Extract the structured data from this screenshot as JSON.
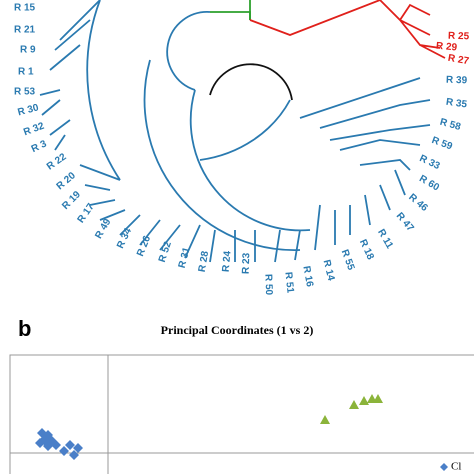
{
  "dendrogram": {
    "leaves_blue": [
      "R 15",
      "R 21",
      "R 9",
      "R 1",
      "R 53",
      "R 30",
      "R 32",
      "R 3",
      "R 22",
      "R 20",
      "R 19",
      "R 17",
      "R 49",
      "R 34",
      "R 26",
      "R 52",
      "R 31",
      "R 28",
      "R 24",
      "R 23",
      "R 50",
      "R 51",
      "R 16",
      "R 14",
      "R 55",
      "R 18",
      "R 11",
      "R 47",
      "R 46",
      "R 60",
      "R 33",
      "R 59",
      "R 58",
      "R 35",
      "R 39"
    ],
    "leaves_red": [
      "R 29",
      "R 25",
      "R 27"
    ]
  },
  "panel_b": {
    "label": "b",
    "title": "Principal Coordinates (1 vs 2)",
    "legend": "Cl"
  }
}
